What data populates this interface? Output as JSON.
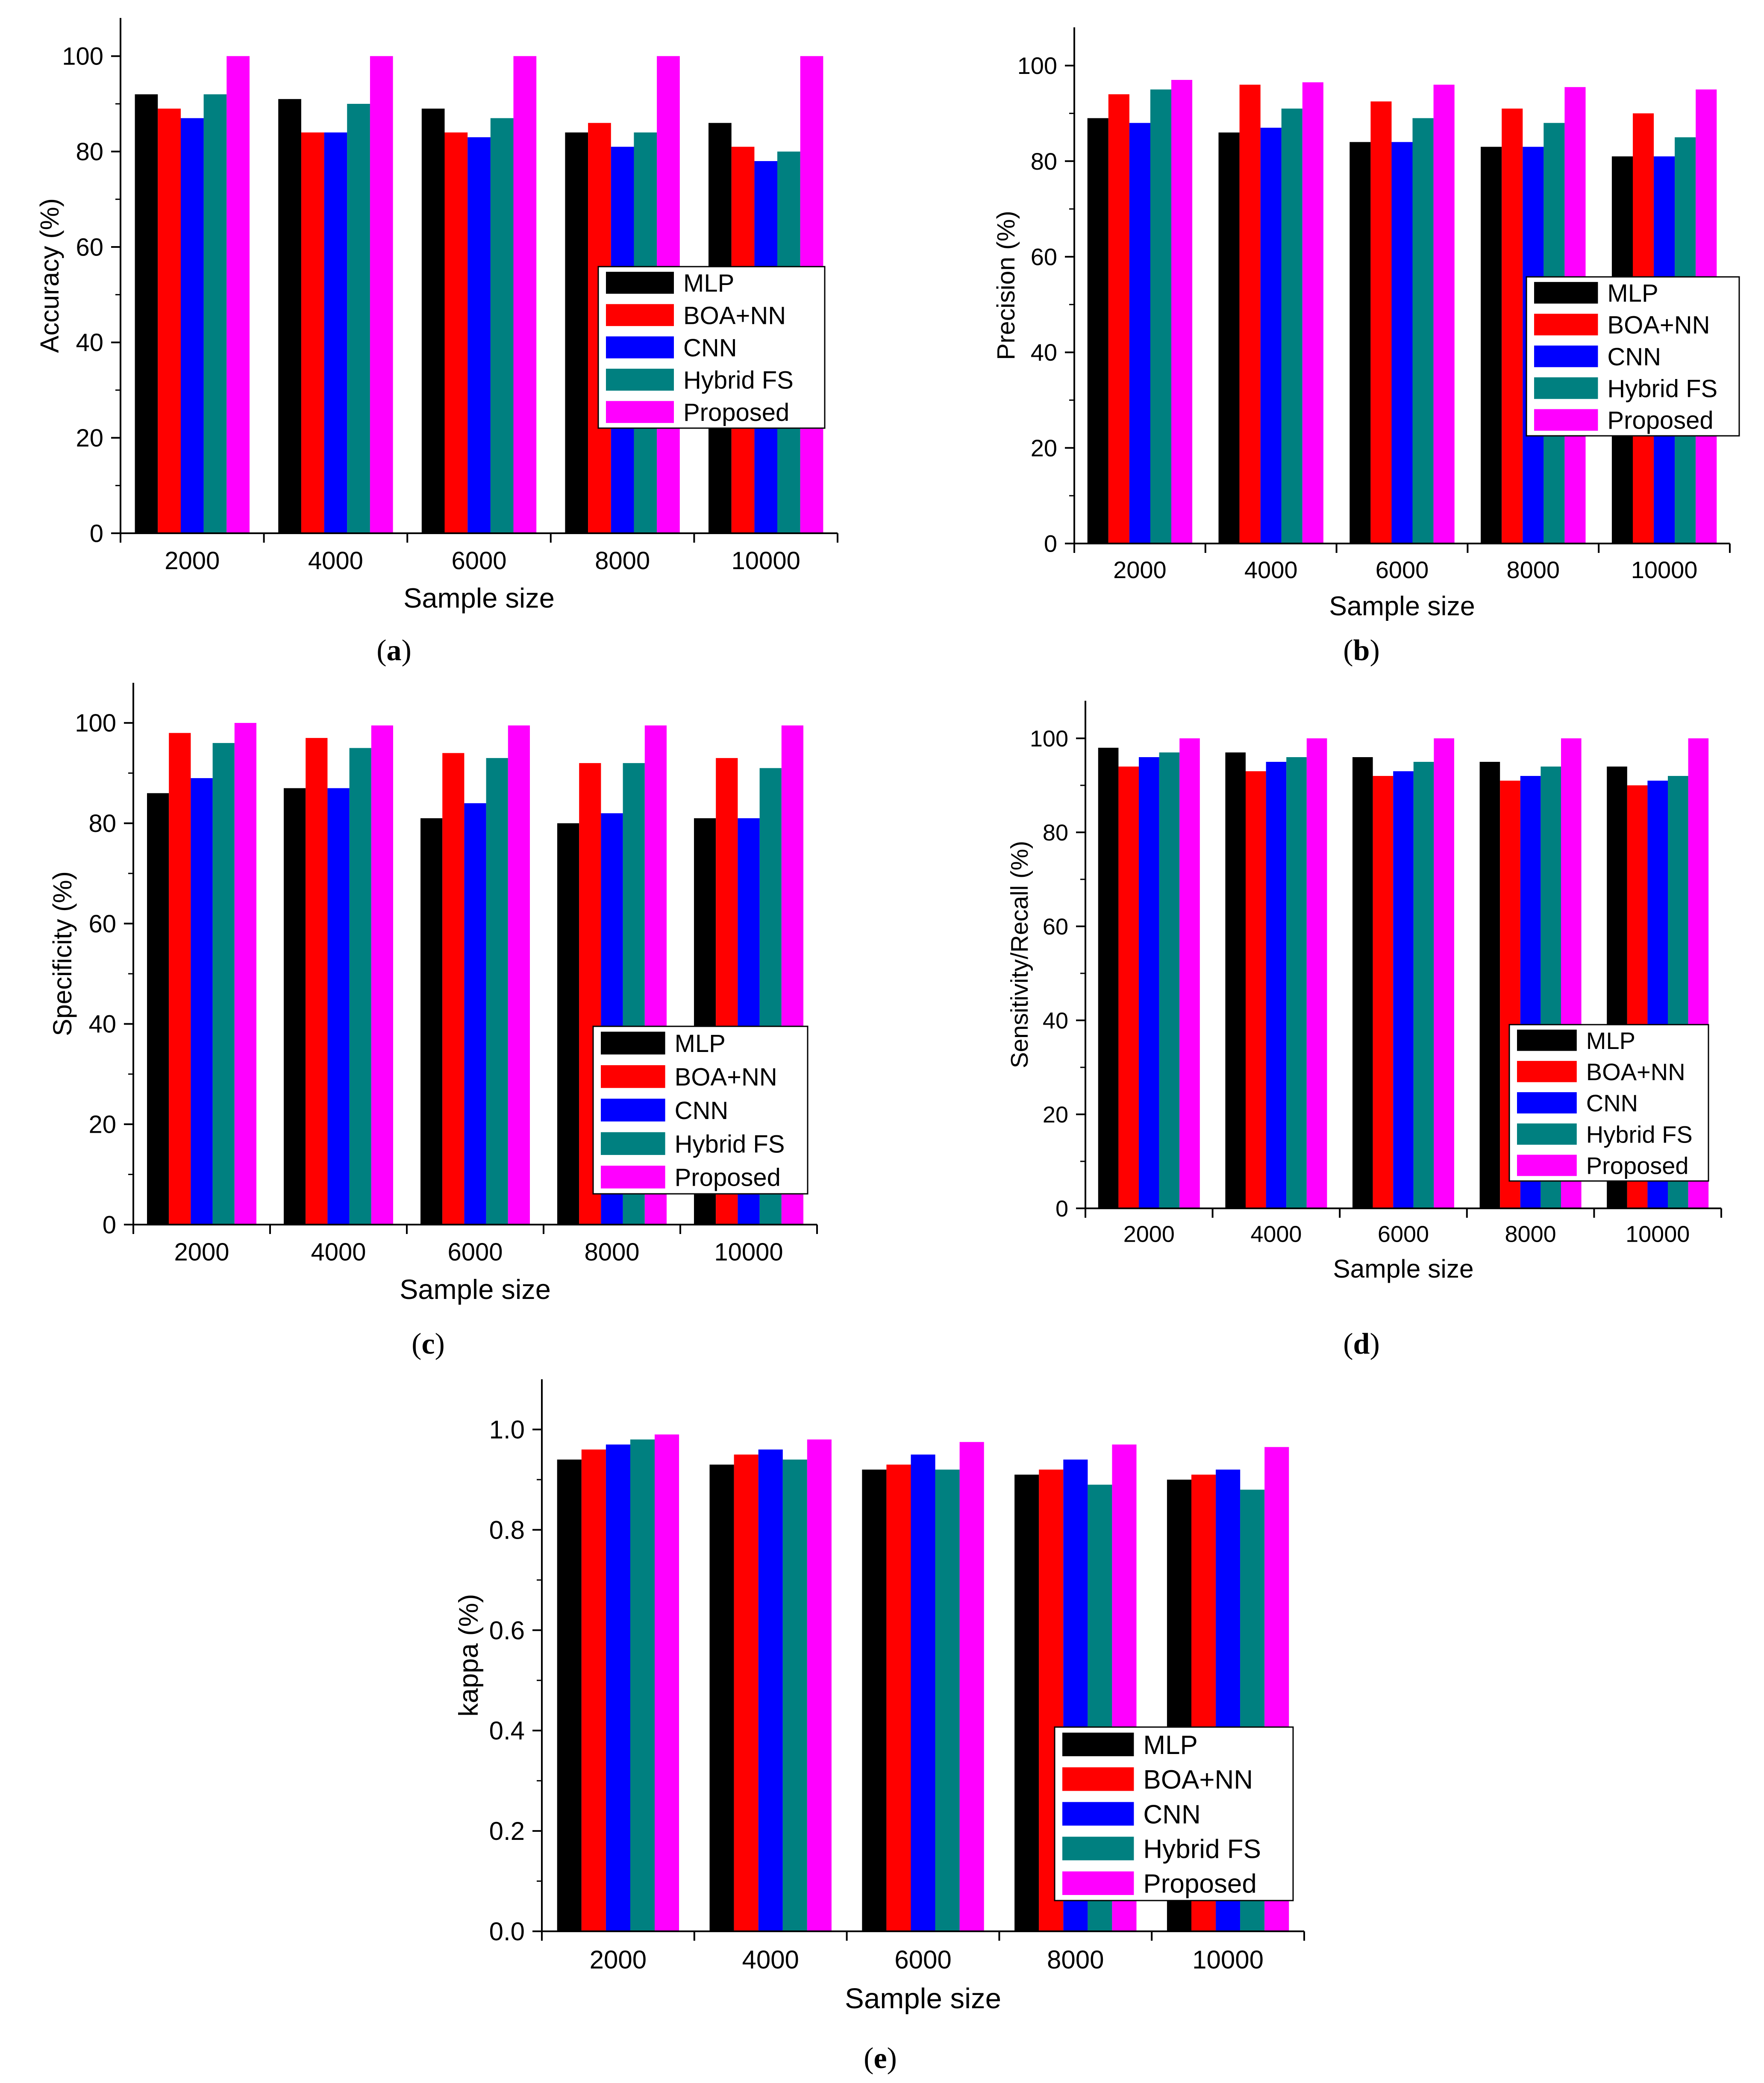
{
  "figure": {
    "panels": [
      "a",
      "b",
      "c",
      "d",
      "e"
    ]
  },
  "chart_data": [
    {
      "id": "a",
      "caption": "a",
      "type": "bar",
      "categories": [
        "2000",
        "4000",
        "6000",
        "8000",
        "10000"
      ],
      "series": [
        {
          "name": "MLP",
          "color": "#000000",
          "values": [
            92,
            91,
            89,
            84,
            86
          ]
        },
        {
          "name": "BOA+NN",
          "color": "#ff0000",
          "values": [
            89,
            84,
            84,
            86,
            81
          ]
        },
        {
          "name": "CNN",
          "color": "#0000ff",
          "values": [
            87,
            84,
            83,
            81,
            78
          ]
        },
        {
          "name": "Hybrid FS",
          "color": "#008080",
          "values": [
            92,
            90,
            87,
            84,
            80
          ]
        },
        {
          "name": "Proposed",
          "color": "#ff00ff",
          "values": [
            100,
            100,
            100,
            100,
            100
          ]
        }
      ],
      "title": "",
      "xlabel": "Sample size",
      "ylabel": "Accuracy (%)",
      "ylim": [
        0,
        108
      ],
      "yticks": [
        0,
        20,
        40,
        60,
        80,
        100
      ],
      "ytick_labels": [
        "0",
        "20",
        "40",
        "60",
        "80",
        "100"
      ],
      "legend_position": "center-right"
    },
    {
      "id": "b",
      "caption": "b",
      "type": "bar",
      "categories": [
        "2000",
        "4000",
        "6000",
        "8000",
        "10000"
      ],
      "series": [
        {
          "name": "MLP",
          "color": "#000000",
          "values": [
            89,
            86,
            84,
            83,
            81
          ]
        },
        {
          "name": "BOA+NN",
          "color": "#ff0000",
          "values": [
            94,
            96,
            92.5,
            91,
            90
          ]
        },
        {
          "name": "CNN",
          "color": "#0000ff",
          "values": [
            88,
            87,
            84,
            83,
            81
          ]
        },
        {
          "name": "Hybrid FS",
          "color": "#008080",
          "values": [
            95,
            91,
            89,
            88,
            85
          ]
        },
        {
          "name": "Proposed",
          "color": "#ff00ff",
          "values": [
            97,
            96.5,
            96,
            95.5,
            95
          ]
        }
      ],
      "title": "",
      "xlabel": "Sample size",
      "ylabel": "Precision (%)",
      "ylim": [
        0,
        108
      ],
      "yticks": [
        0,
        20,
        40,
        60,
        80,
        100
      ],
      "ytick_labels": [
        "0",
        "20",
        "40",
        "60",
        "80",
        "100"
      ],
      "legend_position": "center-right"
    },
    {
      "id": "c",
      "caption": "c",
      "type": "bar",
      "categories": [
        "2000",
        "4000",
        "6000",
        "8000",
        "10000"
      ],
      "series": [
        {
          "name": "MLP",
          "color": "#000000",
          "values": [
            86,
            87,
            81,
            80,
            81
          ]
        },
        {
          "name": "BOA+NN",
          "color": "#ff0000",
          "values": [
            98,
            97,
            94,
            92,
            93
          ]
        },
        {
          "name": "CNN",
          "color": "#0000ff",
          "values": [
            89,
            87,
            84,
            82,
            81
          ]
        },
        {
          "name": "Hybrid FS",
          "color": "#008080",
          "values": [
            96,
            95,
            93,
            92,
            91
          ]
        },
        {
          "name": "Proposed",
          "color": "#ff00ff",
          "values": [
            100,
            99.5,
            99.5,
            99.5,
            99.5
          ]
        }
      ],
      "title": "",
      "xlabel": "Sample size",
      "ylabel": "Specificity (%)",
      "ylim": [
        0,
        108
      ],
      "yticks": [
        0,
        20,
        40,
        60,
        80,
        100
      ],
      "ytick_labels": [
        "0",
        "20",
        "40",
        "60",
        "80",
        "100"
      ],
      "legend_position": "center-right"
    },
    {
      "id": "d",
      "caption": "d",
      "type": "bar",
      "categories": [
        "2000",
        "4000",
        "6000",
        "8000",
        "10000"
      ],
      "series": [
        {
          "name": "MLP",
          "color": "#000000",
          "values": [
            98,
            97,
            96,
            95,
            94
          ]
        },
        {
          "name": "BOA+NN",
          "color": "#ff0000",
          "values": [
            94,
            93,
            92,
            91,
            90
          ]
        },
        {
          "name": "CNN",
          "color": "#0000ff",
          "values": [
            96,
            95,
            93,
            92,
            91
          ]
        },
        {
          "name": "Hybrid FS",
          "color": "#008080",
          "values": [
            97,
            96,
            95,
            94,
            92
          ]
        },
        {
          "name": "Proposed",
          "color": "#ff00ff",
          "values": [
            100,
            100,
            100,
            100,
            100
          ]
        }
      ],
      "title": "",
      "xlabel": "Sample size",
      "ylabel": "Sensitivity/Recall (%)",
      "ylim": [
        0,
        108
      ],
      "yticks": [
        0,
        20,
        40,
        60,
        80,
        100
      ],
      "ytick_labels": [
        "0",
        "20",
        "40",
        "60",
        "80",
        "100"
      ],
      "legend_position": "center-right"
    },
    {
      "id": "e",
      "caption": "e",
      "type": "bar",
      "categories": [
        "2000",
        "4000",
        "6000",
        "8000",
        "10000"
      ],
      "series": [
        {
          "name": "MLP",
          "color": "#000000",
          "values": [
            0.94,
            0.93,
            0.92,
            0.91,
            0.9
          ]
        },
        {
          "name": "BOA+NN",
          "color": "#ff0000",
          "values": [
            0.96,
            0.95,
            0.93,
            0.92,
            0.91
          ]
        },
        {
          "name": "CNN",
          "color": "#0000ff",
          "values": [
            0.97,
            0.96,
            0.95,
            0.94,
            0.92
          ]
        },
        {
          "name": "Hybrid FS",
          "color": "#008080",
          "values": [
            0.98,
            0.94,
            0.92,
            0.89,
            0.88
          ]
        },
        {
          "name": "Proposed",
          "color": "#ff00ff",
          "values": [
            0.99,
            0.98,
            0.975,
            0.97,
            0.965
          ]
        }
      ],
      "title": "",
      "xlabel": "Sample size",
      "ylabel": "kappa (%)",
      "ylim": [
        0,
        1.1
      ],
      "yticks": [
        0,
        0.2,
        0.4,
        0.6,
        0.8,
        1.0
      ],
      "ytick_labels": [
        "0.0",
        "0.2",
        "0.4",
        "0.6",
        "0.8",
        "1.0"
      ],
      "legend_position": "center-right"
    }
  ]
}
